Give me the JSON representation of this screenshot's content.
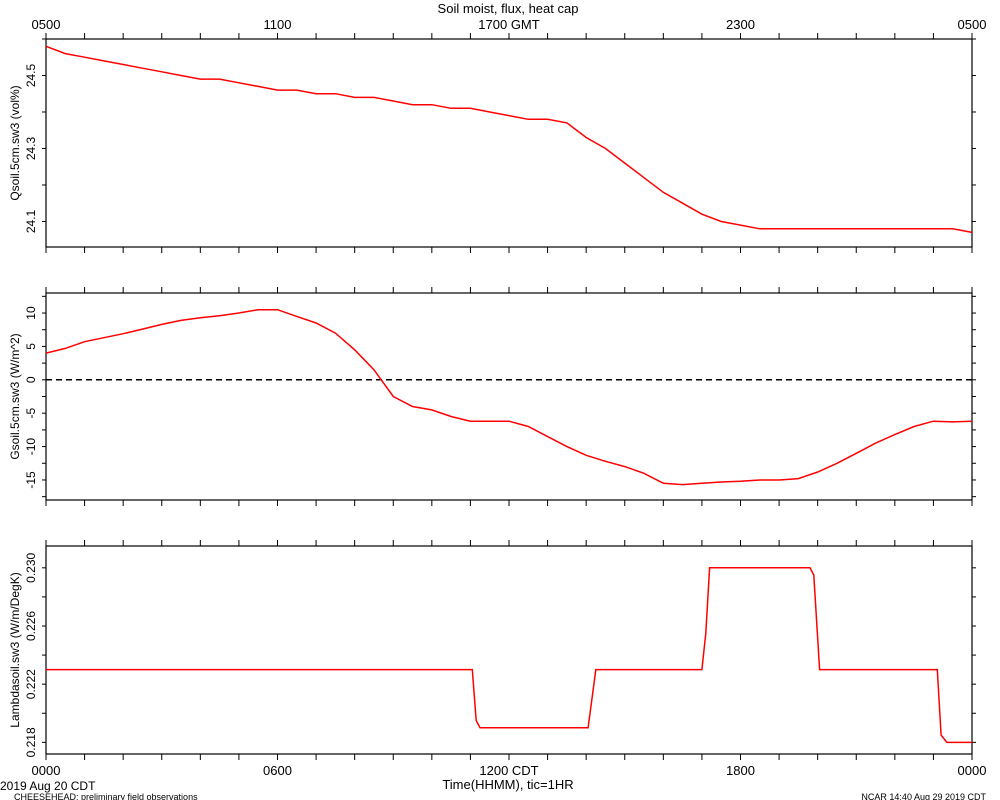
{
  "header": {
    "title": "Soil moist, flux, heat cap",
    "top_ticks": [
      "0500",
      "1100",
      "1700 GMT",
      "2300",
      "0500"
    ]
  },
  "footer": {
    "bottom_ticks": [
      "0000",
      "0600",
      "1200 CDT",
      "1800",
      "0000"
    ],
    "xlabel": "Time(HHMM), tic=1HR",
    "date_label": "2019 Aug 20 CDT",
    "project_label": "CHEESEHEAD: preliminary field observations",
    "credit_label": "NCAR 14:40 Aug 29 2019 CDT"
  },
  "colors": {
    "series": "#ff0000",
    "axes": "#000000"
  },
  "chart_data": [
    {
      "type": "line",
      "ylabel": "Qsoil.5cm.sw3 (vol%)",
      "xlim": [
        0,
        24
      ],
      "ylim": [
        24.03,
        24.6
      ],
      "yticks": [
        24.1,
        24.3,
        24.5
      ],
      "ytick_labels": [
        "24.1",
        "24.3",
        "24.5"
      ],
      "grid": false,
      "series": [
        {
          "x": [
            0,
            0.5,
            1,
            1.5,
            2,
            2.5,
            3,
            3.5,
            4,
            4.5,
            5,
            5.5,
            6,
            6.5,
            7,
            7.5,
            8,
            8.5,
            9,
            9.5,
            10,
            10.5,
            11,
            11.5,
            12,
            12.5,
            13,
            13.5,
            14,
            14.5,
            15,
            15.5,
            16,
            16.5,
            17,
            17.5,
            18,
            18.5,
            19,
            19.5,
            20,
            20.5,
            21,
            21.5,
            22,
            22.5,
            23,
            23.5,
            24
          ],
          "y": [
            24.58,
            24.56,
            24.55,
            24.54,
            24.53,
            24.52,
            24.51,
            24.5,
            24.49,
            24.49,
            24.48,
            24.47,
            24.46,
            24.46,
            24.45,
            24.45,
            24.44,
            24.44,
            24.43,
            24.42,
            24.42,
            24.41,
            24.41,
            24.4,
            24.39,
            24.38,
            24.38,
            24.37,
            24.33,
            24.3,
            24.26,
            24.22,
            24.18,
            24.15,
            24.12,
            24.1,
            24.09,
            24.08,
            24.08,
            24.08,
            24.08,
            24.08,
            24.08,
            24.08,
            24.08,
            24.08,
            24.08,
            24.08,
            24.07
          ]
        }
      ]
    },
    {
      "type": "line",
      "ylabel": "Gsoil.5cm.sw3 (W/m^2)",
      "xlim": [
        0,
        24
      ],
      "ylim": [
        -18,
        13
      ],
      "yticks": [
        -15,
        -10,
        -5,
        0,
        5,
        10
      ],
      "ytick_labels": [
        "-15",
        "-10",
        "-5",
        "0",
        "5",
        "10"
      ],
      "zero_line": true,
      "grid": false,
      "series": [
        {
          "x": [
            0,
            0.5,
            1,
            1.5,
            2,
            2.5,
            3,
            3.5,
            4,
            4.5,
            5,
            5.5,
            6,
            6.5,
            7,
            7.5,
            8,
            8.5,
            9,
            9.5,
            10,
            10.5,
            11,
            11.5,
            12,
            12.5,
            13,
            13.5,
            14,
            14.5,
            15,
            15.5,
            16,
            16.5,
            17,
            17.5,
            18,
            18.5,
            19,
            19.5,
            20,
            20.5,
            21,
            21.5,
            22,
            22.5,
            23,
            23.5,
            24
          ],
          "y": [
            4,
            4.7,
            5.7,
            6.3,
            6.9,
            7.6,
            8.3,
            8.9,
            9.3,
            9.6,
            10,
            10.5,
            10.5,
            9.5,
            8.5,
            7,
            4.5,
            1.5,
            -2.5,
            -4,
            -4.5,
            -5.5,
            -6.2,
            -6.2,
            -6.2,
            -7,
            -8.5,
            -10,
            -11.3,
            -12.2,
            -13,
            -14,
            -15.5,
            -15.7,
            -15.5,
            -15.3,
            -15.2,
            -15,
            -15,
            -14.8,
            -13.8,
            -12.5,
            -11,
            -9.5,
            -8.2,
            -7,
            -6.2,
            -6.3,
            -6.2
          ]
        }
      ]
    },
    {
      "type": "line",
      "ylabel": "Lambdasoil.sw3 (W/m/DegK)",
      "xlim": [
        0,
        24
      ],
      "ylim": [
        0.2172,
        0.2315
      ],
      "yticks": [
        0.218,
        0.222,
        0.226,
        0.23
      ],
      "ytick_labels": [
        "0.218",
        "0.222",
        "0.226",
        "0.230"
      ],
      "grid": false,
      "series": [
        {
          "x": [
            0,
            11.05,
            11.15,
            11.25,
            14.05,
            14.2,
            14.25,
            17,
            17.1,
            17.2,
            19.8,
            19.9,
            20.05,
            23.1,
            23.2,
            23.35,
            24
          ],
          "y": [
            0.223,
            0.223,
            0.2195,
            0.219,
            0.219,
            0.222,
            0.223,
            0.223,
            0.2255,
            0.23,
            0.23,
            0.2295,
            0.223,
            0.223,
            0.2185,
            0.218,
            0.218
          ]
        }
      ]
    }
  ]
}
